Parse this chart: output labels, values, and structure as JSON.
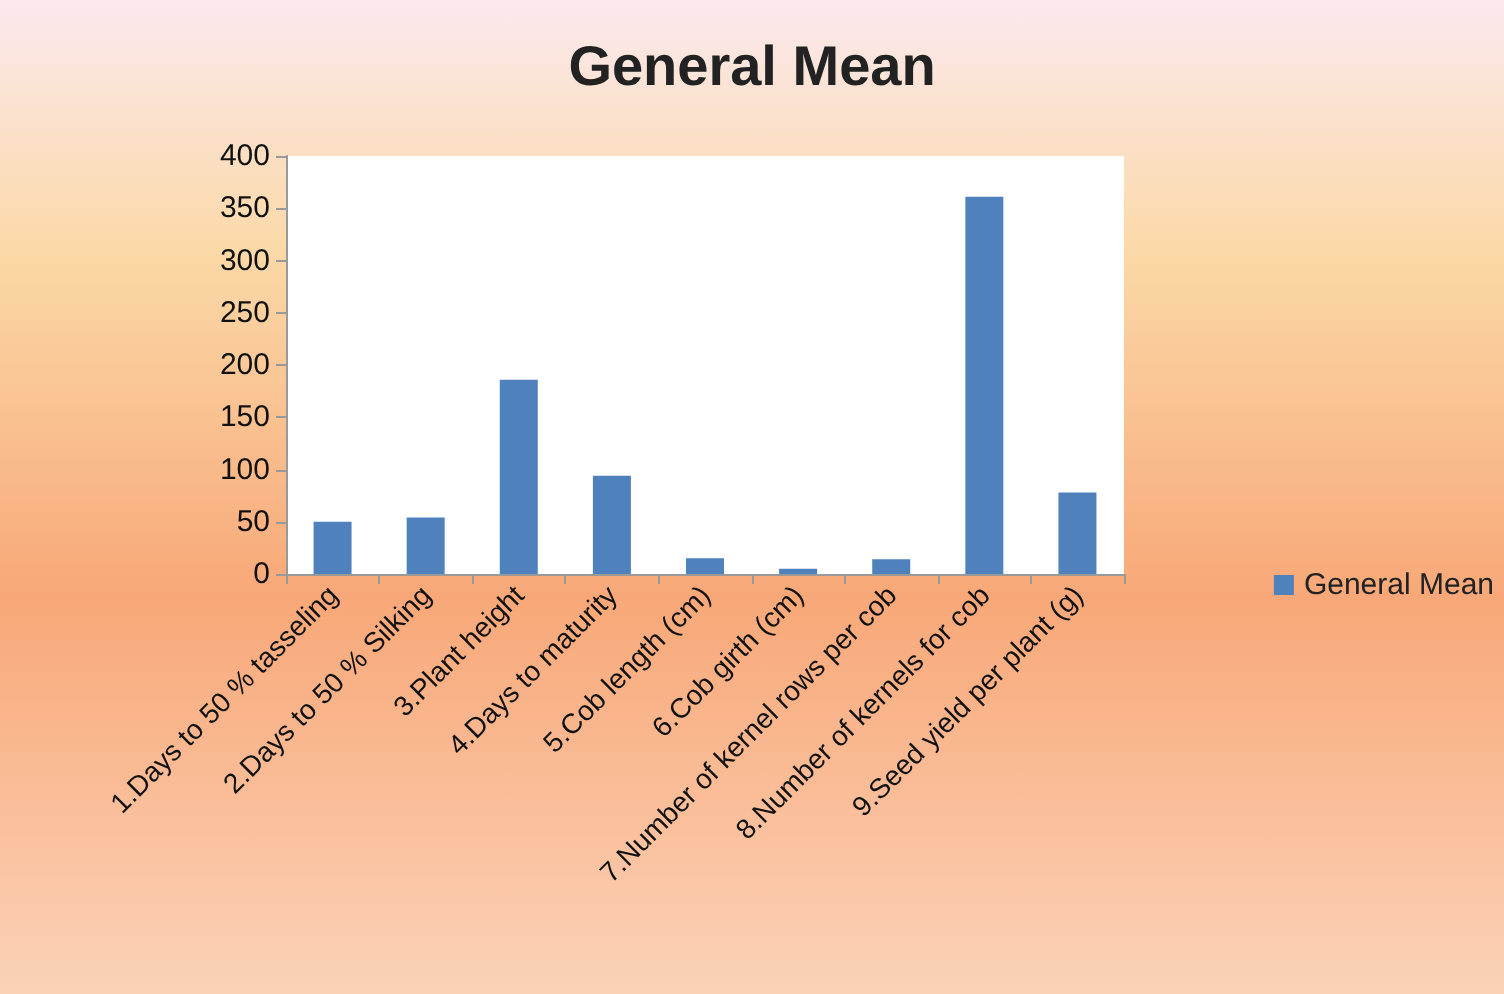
{
  "chart_data": {
    "type": "bar",
    "title": "General Mean",
    "categories": [
      "1.Days to 50 % tasseling",
      "2.Days to 50 % Silking",
      "3.Plant height",
      "4.Days to maturity",
      "5.Cob length (cm)",
      "6.Cob girth (cm)",
      "7.Number of kernel rows per cob",
      "8.Number of kernels for cob",
      "9.Seed yield per plant (g)"
    ],
    "series": [
      {
        "name": "General Mean",
        "color": "#4f81bd",
        "values": [
          50,
          54,
          186,
          94,
          15,
          5,
          14,
          361,
          78
        ]
      }
    ],
    "ylim": [
      0,
      400
    ],
    "yticks": [
      0,
      50,
      100,
      150,
      200,
      250,
      300,
      350,
      400
    ],
    "grid": false,
    "legend": "right"
  }
}
